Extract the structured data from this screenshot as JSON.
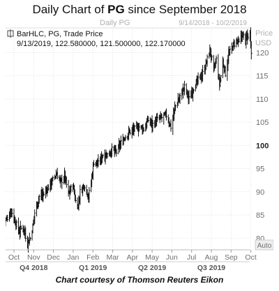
{
  "title": {
    "prefix": "Daily Chart of ",
    "ticker": "PG",
    "suffix": " since September 2018"
  },
  "caption": "Chart courtesy of Thomson Reuters Eikon",
  "chart_data": {
    "type": "ohlc",
    "header": {
      "label": "Daily PG",
      "date_range": "9/14/2018 - 10/2/2019"
    },
    "legend": {
      "series_line": "BarHLC, PG, Trade Price",
      "values_line": "9/13/2019, 122.580000, 121.500000, 122.170000"
    },
    "y_axis": {
      "title_line1": "Price",
      "title_line2": "USD",
      "ticks": [
        80,
        85,
        90,
        95,
        100,
        105,
        110,
        115,
        120
      ],
      "highlighted_tick": 100,
      "ylim": [
        77.5,
        125.0
      ],
      "auto_label": "Auto"
    },
    "x_axis": {
      "months": [
        "Oct",
        "Nov",
        "Dec",
        "Jan",
        "Feb",
        "Mar",
        "Apr",
        "May",
        "Jun",
        "Jul",
        "Aug",
        "Sep",
        "Oct"
      ],
      "quarters": [
        "Q4 2018",
        "Q1 2019",
        "Q2 2019",
        "Q3 2019"
      ]
    },
    "price_path": [
      [
        "2018-09-14",
        82.8
      ],
      [
        "2018-09-21",
        84.5
      ],
      [
        "2018-09-27",
        86.0
      ],
      [
        "2018-10-03",
        83.5
      ],
      [
        "2018-10-09",
        81.5
      ],
      [
        "2018-10-15",
        82.5
      ],
      [
        "2018-10-22",
        79.0
      ],
      [
        "2018-10-26",
        80.0
      ],
      [
        "2018-10-30",
        82.5
      ],
      [
        "2018-11-02",
        85.5
      ],
      [
        "2018-11-09",
        89.0
      ],
      [
        "2018-11-16",
        89.5
      ],
      [
        "2018-11-23",
        91.0
      ],
      [
        "2018-11-30",
        92.5
      ],
      [
        "2018-12-06",
        94.0
      ],
      [
        "2018-12-12",
        92.0
      ],
      [
        "2018-12-18",
        93.5
      ],
      [
        "2018-12-24",
        89.5
      ],
      [
        "2018-12-31",
        91.5
      ],
      [
        "2019-01-04",
        88.0
      ],
      [
        "2019-01-08",
        87.0
      ],
      [
        "2019-01-11",
        90.0
      ],
      [
        "2019-01-18",
        91.5
      ],
      [
        "2019-01-24",
        89.0
      ],
      [
        "2019-01-28",
        92.0
      ],
      [
        "2019-02-01",
        96.5
      ],
      [
        "2019-02-08",
        96.0
      ],
      [
        "2019-02-15",
        98.0
      ],
      [
        "2019-02-22",
        98.0
      ],
      [
        "2019-03-01",
        99.0
      ],
      [
        "2019-03-08",
        98.5
      ],
      [
        "2019-03-15",
        100.5
      ],
      [
        "2019-03-22",
        102.0
      ],
      [
        "2019-03-29",
        103.0
      ],
      [
        "2019-04-05",
        103.5
      ],
      [
        "2019-04-12",
        104.0
      ],
      [
        "2019-04-19",
        103.5
      ],
      [
        "2019-04-26",
        105.5
      ],
      [
        "2019-05-03",
        104.5
      ],
      [
        "2019-05-10",
        105.5
      ],
      [
        "2019-05-17",
        106.0
      ],
      [
        "2019-05-24",
        106.5
      ],
      [
        "2019-05-31",
        104.0
      ],
      [
        "2019-06-07",
        108.5
      ],
      [
        "2019-06-14",
        110.5
      ],
      [
        "2019-06-21",
        112.5
      ],
      [
        "2019-06-28",
        110.0
      ],
      [
        "2019-07-05",
        112.5
      ],
      [
        "2019-07-12",
        114.0
      ],
      [
        "2019-07-19",
        115.5
      ],
      [
        "2019-07-24",
        117.5
      ],
      [
        "2019-07-30",
        120.5
      ],
      [
        "2019-08-02",
        118.5
      ],
      [
        "2019-08-05",
        116.0
      ],
      [
        "2019-08-09",
        118.5
      ],
      [
        "2019-08-14",
        113.0
      ],
      [
        "2019-08-19",
        118.0
      ],
      [
        "2019-08-23",
        115.5
      ],
      [
        "2019-08-28",
        119.5
      ],
      [
        "2019-09-04",
        121.5
      ],
      [
        "2019-09-09",
        122.5
      ],
      [
        "2019-09-13",
        122.0
      ],
      [
        "2019-09-18",
        124.0
      ],
      [
        "2019-09-23",
        122.5
      ],
      [
        "2019-09-26",
        123.5
      ],
      [
        "2019-09-30",
        124.0
      ],
      [
        "2019-10-02",
        120.5
      ]
    ],
    "colors": {
      "bars": "#111111",
      "grid": "#d0d0d0",
      "header_text": "#b0b0b0",
      "axis_text": "#6e6e6e",
      "highlight_tick": "#222222",
      "quarter_text": "#555555"
    }
  }
}
